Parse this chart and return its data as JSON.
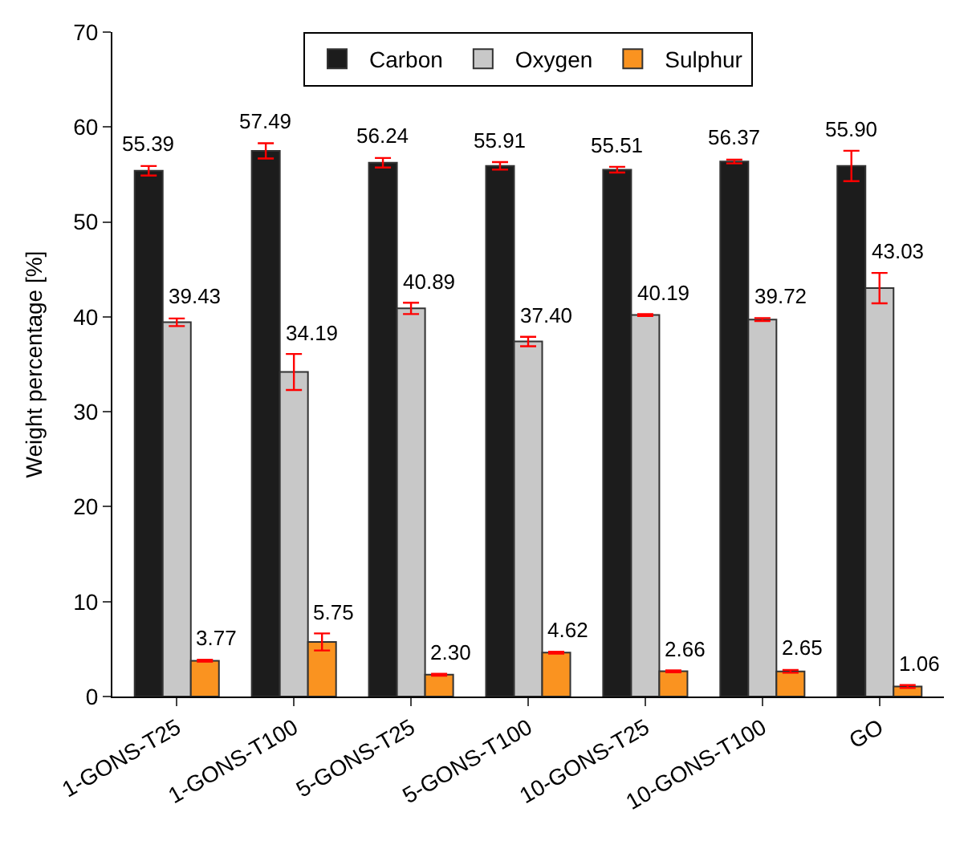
{
  "chart_data": {
    "type": "bar",
    "ylabel": "Weight percentage [%]",
    "categories": [
      "1-GONS-T25",
      "1-GONS-T100",
      "5-GONS-T25",
      "5-GONS-T100",
      "10-GONS-T25",
      "10-GONS-T100",
      "GO"
    ],
    "series": [
      {
        "name": "Carbon",
        "color": "#1c1c1c",
        "values": [
          55.39,
          57.49,
          56.24,
          55.91,
          55.51,
          56.37,
          55.9
        ],
        "errors": [
          0.5,
          0.8,
          0.5,
          0.4,
          0.3,
          0.2,
          1.6
        ],
        "value_labels": [
          "55.39",
          "57.49",
          "56.24",
          "55.91",
          "55.51",
          "56.37",
          "55.90"
        ]
      },
      {
        "name": "Oxygen",
        "color": "#c8c8c8",
        "values": [
          39.43,
          34.19,
          40.89,
          37.4,
          40.19,
          39.72,
          43.03
        ],
        "errors": [
          0.4,
          1.9,
          0.6,
          0.5,
          0.1,
          0.15,
          1.6
        ],
        "value_labels": [
          "39.43",
          "34.19",
          "40.89",
          "37.40",
          "40.19",
          "39.72",
          "43.03"
        ]
      },
      {
        "name": "Sulphur",
        "color": "#fa9320",
        "values": [
          3.77,
          5.75,
          2.3,
          4.62,
          2.66,
          2.65,
          1.06
        ],
        "errors": [
          0.1,
          0.9,
          0.1,
          0.1,
          0.1,
          0.15,
          0.15
        ],
        "value_labels": [
          "3.77",
          "5.75",
          "2.30",
          "4.62",
          "2.66",
          "2.65",
          "1.06"
        ]
      }
    ],
    "ylim": [
      0,
      70
    ],
    "yticks": [
      0,
      10,
      20,
      30,
      40,
      50,
      60,
      70
    ],
    "legend": "top"
  }
}
